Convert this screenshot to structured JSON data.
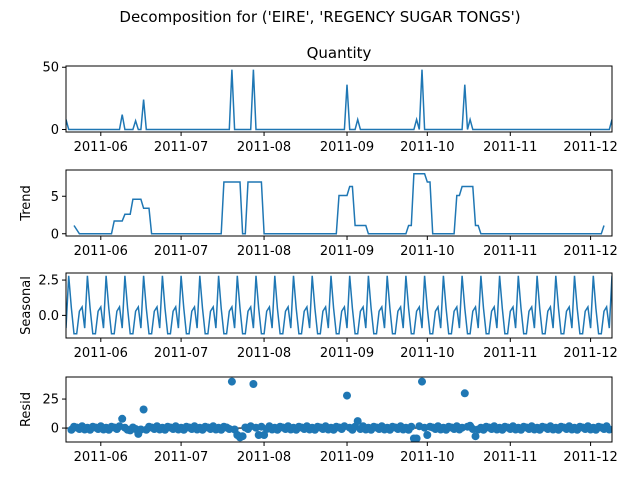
{
  "figure": {
    "suptitle": "Decomposition for ('EIRE', 'REGENCY SUGAR TONGS')"
  },
  "chart_data": [
    {
      "type": "line",
      "panel": "observed",
      "title": "Quantity",
      "ylabel": "",
      "ylim": [
        -2,
        51
      ],
      "yticks": [
        0,
        50
      ],
      "xlabels": [
        "2011-06",
        "2011-07",
        "2011-08",
        "2011-09",
        "2011-10",
        "2011-11",
        "2011-12"
      ],
      "x_range": [
        "2011-05-19",
        "2011-12-09"
      ],
      "series_color": "#1f77b4",
      "points": [
        [
          "2011-05-19",
          8
        ],
        [
          "2011-05-20",
          0
        ],
        [
          "2011-06-08",
          0
        ],
        [
          "2011-06-09",
          12
        ],
        [
          "2011-06-10",
          0
        ],
        [
          "2011-06-13",
          0
        ],
        [
          "2011-06-14",
          7
        ],
        [
          "2011-06-15",
          0
        ],
        [
          "2011-06-16",
          0
        ],
        [
          "2011-06-17",
          24
        ],
        [
          "2011-06-18",
          0
        ],
        [
          "2011-07-19",
          0
        ],
        [
          "2011-07-20",
          48
        ],
        [
          "2011-07-21",
          0
        ],
        [
          "2011-07-27",
          0
        ],
        [
          "2011-07-28",
          48
        ],
        [
          "2011-07-29",
          0
        ],
        [
          "2011-08-31",
          0
        ],
        [
          "2011-09-01",
          36
        ],
        [
          "2011-09-02",
          0
        ],
        [
          "2011-09-04",
          0
        ],
        [
          "2011-09-05",
          8
        ],
        [
          "2011-09-06",
          0
        ],
        [
          "2011-09-26",
          0
        ],
        [
          "2011-09-27",
          8
        ],
        [
          "2011-09-28",
          0
        ],
        [
          "2011-09-29",
          48
        ],
        [
          "2011-09-30",
          0
        ],
        [
          "2011-10-14",
          0
        ],
        [
          "2011-10-15",
          36
        ],
        [
          "2011-10-16",
          0
        ],
        [
          "2011-10-17",
          8
        ],
        [
          "2011-10-18",
          0
        ],
        [
          "2011-12-08",
          0
        ],
        [
          "2011-12-09",
          8
        ]
      ]
    },
    {
      "type": "line",
      "panel": "trend",
      "title": "",
      "ylabel": "Trend",
      "ylim": [
        -0.3,
        8.5
      ],
      "yticks": [
        0,
        5
      ],
      "xlabels": [
        "2011-06",
        "2011-07",
        "2011-08",
        "2011-09",
        "2011-10",
        "2011-11",
        "2011-12"
      ],
      "x_range": [
        "2011-05-19",
        "2011-12-09"
      ],
      "series_color": "#1f77b4",
      "points": [
        [
          "2011-05-22",
          1.1
        ],
        [
          "2011-05-24",
          0
        ],
        [
          "2011-06-05",
          0
        ],
        [
          "2011-06-06",
          1.7
        ],
        [
          "2011-06-09",
          1.7
        ],
        [
          "2011-06-10",
          2.6
        ],
        [
          "2011-06-12",
          2.6
        ],
        [
          "2011-06-13",
          4.6
        ],
        [
          "2011-06-16",
          4.6
        ],
        [
          "2011-06-17",
          3.4
        ],
        [
          "2011-06-19",
          3.4
        ],
        [
          "2011-06-20",
          0
        ],
        [
          "2011-07-16",
          0
        ],
        [
          "2011-07-17",
          6.9
        ],
        [
          "2011-07-23",
          6.9
        ],
        [
          "2011-07-24",
          0
        ],
        [
          "2011-07-25",
          0
        ],
        [
          "2011-07-26",
          6.9
        ],
        [
          "2011-07-31",
          6.9
        ],
        [
          "2011-08-01",
          0
        ],
        [
          "2011-08-28",
          0
        ],
        [
          "2011-08-29",
          5.1
        ],
        [
          "2011-09-01",
          5.1
        ],
        [
          "2011-09-02",
          6.3
        ],
        [
          "2011-09-03",
          6.3
        ],
        [
          "2011-09-04",
          1.1
        ],
        [
          "2011-09-08",
          1.1
        ],
        [
          "2011-09-09",
          0
        ],
        [
          "2011-09-23",
          0
        ],
        [
          "2011-09-24",
          1.1
        ],
        [
          "2011-09-25",
          1.1
        ],
        [
          "2011-09-26",
          8.0
        ],
        [
          "2011-09-30",
          8.0
        ],
        [
          "2011-10-01",
          6.9
        ],
        [
          "2011-10-02",
          6.9
        ],
        [
          "2011-10-03",
          0
        ],
        [
          "2011-10-11",
          0
        ],
        [
          "2011-10-12",
          5.1
        ],
        [
          "2011-10-13",
          5.1
        ],
        [
          "2011-10-14",
          6.3
        ],
        [
          "2011-10-18",
          6.3
        ],
        [
          "2011-10-19",
          1.1
        ],
        [
          "2011-10-20",
          1.1
        ],
        [
          "2011-10-21",
          0
        ],
        [
          "2011-12-05",
          0
        ],
        [
          "2011-12-06",
          1.1
        ]
      ]
    },
    {
      "type": "line",
      "panel": "seasonal",
      "title": "",
      "ylabel": "Seasonal",
      "ylim": [
        -1.6,
        3.0
      ],
      "yticks": [
        -0.0,
        2.5
      ],
      "ytick_labels": [
        "0.0",
        "2.5"
      ],
      "xlabels": [
        "2011-06",
        "2011-07",
        "2011-08",
        "2011-09",
        "2011-10",
        "2011-11",
        "2011-12"
      ],
      "x_range": [
        "2011-05-19",
        "2011-12-09"
      ],
      "series_color": "#1f77b4",
      "period_days": 7,
      "first_day": "2011-05-19",
      "weekly_pattern": [
        -0.9,
        2.8,
        0.5,
        -1.3,
        -1.3,
        0.3,
        0.6
      ]
    },
    {
      "type": "scatter",
      "panel": "resid",
      "title": "",
      "ylabel": "Resid",
      "ylim": [
        -12,
        44
      ],
      "yticks": [
        0,
        25
      ],
      "xlabels": [
        "2011-06",
        "2011-07",
        "2011-08",
        "2011-09",
        "2011-10",
        "2011-11",
        "2011-12"
      ],
      "x_range": [
        "2011-05-19",
        "2011-12-09"
      ],
      "series_color": "#1f77b4",
      "baseline": 0,
      "daily_residuals_from": "2011-05-21",
      "daily_residuals_to": "2011-12-08",
      "outliers": [
        [
          "2011-06-09",
          8
        ],
        [
          "2011-06-12",
          -2
        ],
        [
          "2011-06-15",
          -5
        ],
        [
          "2011-06-17",
          16
        ],
        [
          "2011-07-20",
          40
        ],
        [
          "2011-07-22",
          -6
        ],
        [
          "2011-07-23",
          -8
        ],
        [
          "2011-07-24",
          -7
        ],
        [
          "2011-07-28",
          38
        ],
        [
          "2011-07-30",
          -6
        ],
        [
          "2011-08-01",
          -6
        ],
        [
          "2011-09-01",
          28
        ],
        [
          "2011-09-05",
          6
        ],
        [
          "2011-09-26",
          -9
        ],
        [
          "2011-09-27",
          -9
        ],
        [
          "2011-09-29",
          40
        ],
        [
          "2011-10-01",
          -6
        ],
        [
          "2011-10-15",
          30
        ],
        [
          "2011-10-17",
          2
        ],
        [
          "2011-10-19",
          -7
        ]
      ]
    }
  ]
}
